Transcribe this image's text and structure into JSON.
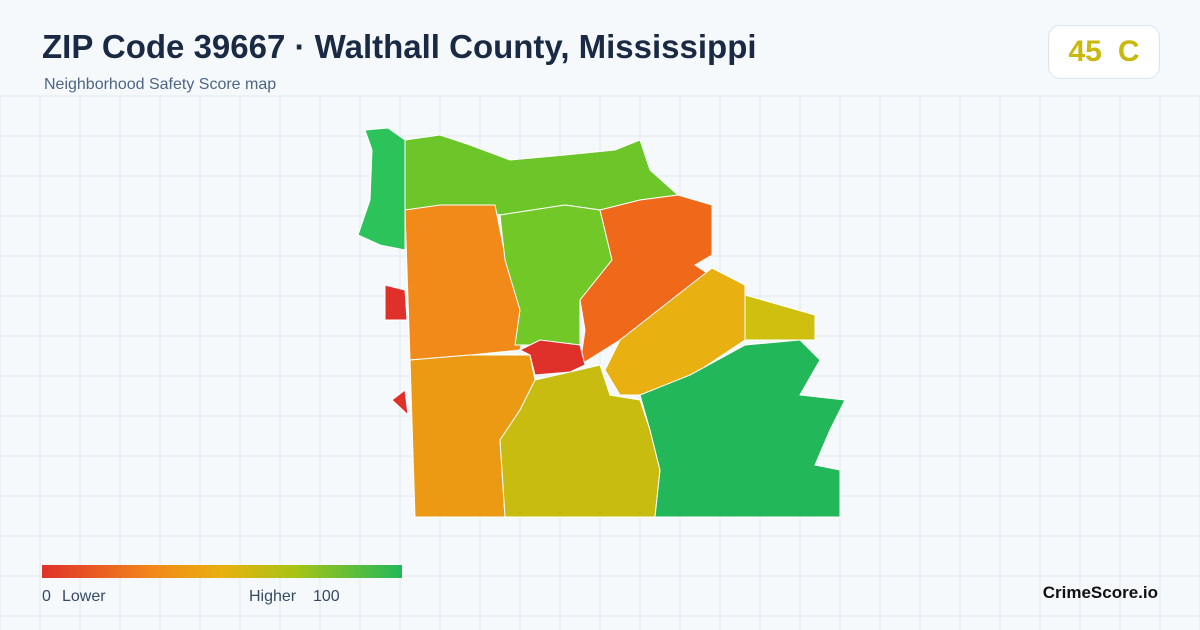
{
  "header": {
    "title": "ZIP Code 39667 · Walthall County, Mississippi",
    "subtitle": "Neighborhood Safety Score map"
  },
  "badge": {
    "score": "45",
    "grade": "C"
  },
  "legend": {
    "min": "0",
    "min_label": "Lower",
    "max_label": "Higher",
    "max": "100"
  },
  "brand": "CrimeScore.io"
}
